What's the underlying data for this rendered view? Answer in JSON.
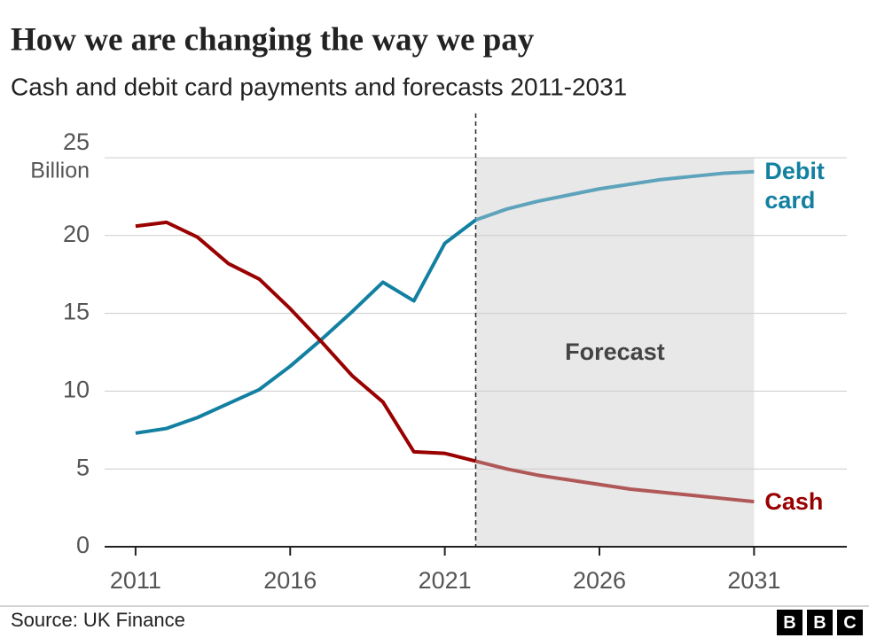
{
  "chart_data": {
    "type": "line",
    "title": "How we are changing the way we pay",
    "subtitle": "Cash and debit card payments and forecasts 2011-2031",
    "y_label": "Billion",
    "x": [
      2011,
      2012,
      2013,
      2014,
      2015,
      2016,
      2017,
      2018,
      2019,
      2020,
      2021,
      2022,
      2023,
      2024,
      2025,
      2026,
      2027,
      2028,
      2029,
      2030,
      2031
    ],
    "series": [
      {
        "name": "Debit card",
        "color": "#1380a1",
        "forecast_color": "#5ea3bc",
        "values": [
          7.3,
          7.6,
          8.3,
          9.2,
          10.1,
          11.6,
          13.3,
          15.1,
          17.0,
          15.8,
          19.5,
          21.0,
          21.7,
          22.2,
          22.6,
          23.0,
          23.3,
          23.6,
          23.8,
          24.0,
          24.1
        ]
      },
      {
        "name": "Cash",
        "color": "#990000",
        "forecast_color": "#b05858",
        "values": [
          20.6,
          20.85,
          19.9,
          18.2,
          17.2,
          15.3,
          13.2,
          11.0,
          9.3,
          6.1,
          6.0,
          5.5,
          5.0,
          4.6,
          4.3,
          4.0,
          3.7,
          3.5,
          3.3,
          3.1,
          2.9
        ]
      }
    ],
    "forecast_region": [
      2022,
      2031
    ],
    "forecast_label": "Forecast",
    "xlim": [
      2010,
      2034
    ],
    "xticks": [
      2011,
      2016,
      2021,
      2026,
      2031
    ],
    "ylim": [
      0,
      25
    ],
    "yticks": [
      0,
      5,
      10,
      15,
      20,
      25
    ],
    "grid": true,
    "source": "Source: UK Finance",
    "logo": [
      "B",
      "B",
      "C"
    ]
  }
}
